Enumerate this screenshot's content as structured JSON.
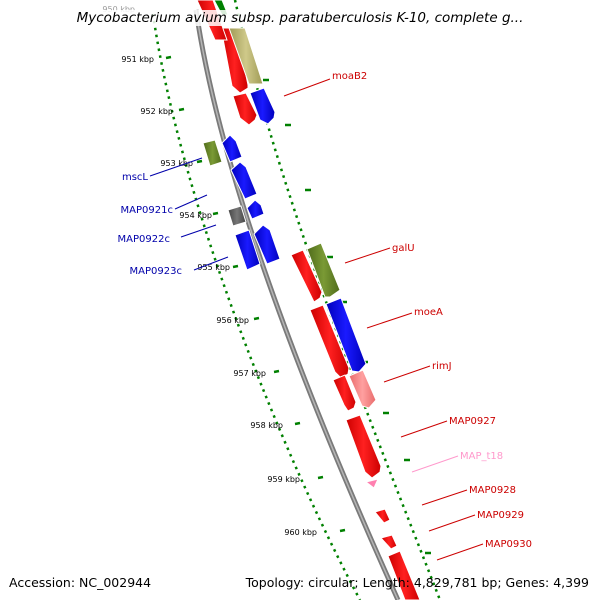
{
  "title": "Mycobacterium avium subsp. paratuberculosis K-10, complete g...",
  "footer": {
    "accession": "Accession: NC_002944",
    "genome_info": "Topology: circular; Length: 4,829,781 bp; Genes: 4,399"
  },
  "colors": {
    "forward_track_green": "#008000",
    "gene_red": "#ff0000",
    "gene_blue": "#0000ff",
    "gene_olive": "#6b8e23",
    "gene_khaki": "#bdb76b",
    "gene_gray": "#555555",
    "gene_pink": "#ff7f7f",
    "trna_pink": "#ff99cc",
    "backbone_gray": "#888888",
    "forward_label": "#cc0000",
    "reverse_label": "#0000aa"
  },
  "scale_labels": [
    {
      "text": "950 kbp"
    },
    {
      "text": "951 kbp"
    },
    {
      "text": "952 kbp"
    },
    {
      "text": "953 kbp"
    },
    {
      "text": "954 kbp"
    },
    {
      "text": "955 kbp"
    },
    {
      "text": "956 kbp"
    },
    {
      "text": "957 kbp"
    },
    {
      "text": "958 kbp"
    },
    {
      "text": "959 kbp"
    },
    {
      "text": "960 kbp"
    }
  ],
  "forward_gene_labels": [
    "moaB2",
    "galU",
    "moeA",
    "rimJ",
    "MAP0927",
    "MAP_t18",
    "MAP0928",
    "MAP0929",
    "MAP0930"
  ],
  "reverse_gene_labels": [
    "mscL",
    "MAP0921c",
    "MAP0922c",
    "MAP0923c"
  ]
}
